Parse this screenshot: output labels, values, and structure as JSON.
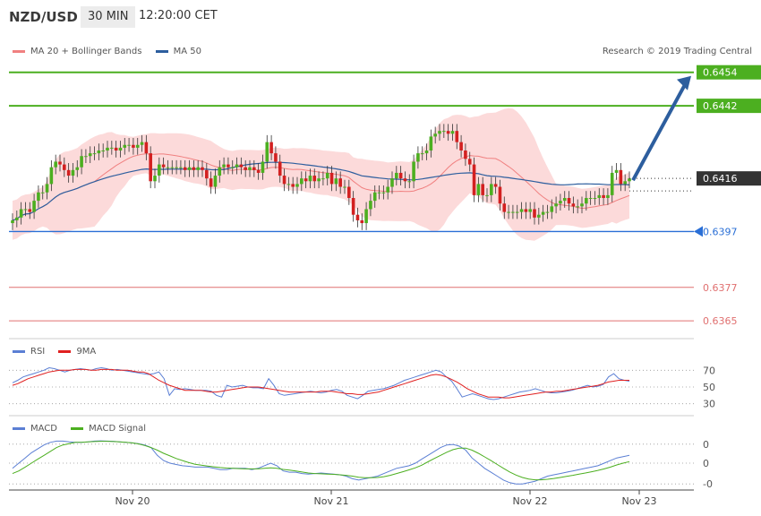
{
  "header": {
    "pair": "NZD/USD",
    "timeframe": "30 MIN",
    "time": "12:20:00 CET"
  },
  "legends": {
    "main": [
      {
        "label": "MA 20 + Bollinger Bands",
        "color": "#f08080"
      },
      {
        "label": "MA 50",
        "color": "#2d5e9e"
      }
    ],
    "rsi": [
      {
        "label": "RSI",
        "color": "#5b7fd4"
      },
      {
        "label": "9MA",
        "color": "#e02020"
      }
    ],
    "macd": [
      {
        "label": "MACD",
        "color": "#5b7fd4"
      },
      {
        "label": "MACD Signal",
        "color": "#4caf20"
      }
    ]
  },
  "copyright": "Research © 2019 Trading Central",
  "levels": [
    {
      "value": "0.6454",
      "color": "#4caf20",
      "kind": "resistance"
    },
    {
      "value": "0.6442",
      "color": "#4caf20",
      "kind": "resistance"
    },
    {
      "value": "0.6416",
      "color": "#333333",
      "kind": "current"
    },
    {
      "value": "0.6397",
      "color": "#2a6fd6",
      "kind": "pivot"
    },
    {
      "value": "0.6377",
      "color": "#e07070",
      "kind": "support"
    },
    {
      "value": "0.6365",
      "color": "#e07070",
      "kind": "support"
    }
  ],
  "rsi_ticks": [
    "70",
    "50",
    "30"
  ],
  "macd_ticks": [
    "0",
    "0",
    "-0"
  ],
  "x_labels": [
    "Nov 20",
    "Nov 21",
    "Nov 22",
    "Nov 23"
  ],
  "chart_data": [
    {
      "type": "candlestick",
      "title": "NZD/USD 30 MIN",
      "ylim": [
        0.6358,
        0.646
      ],
      "close_start": 0.64,
      "closes": [
        0.6401,
        0.6402,
        0.6405,
        0.6405,
        0.6404,
        0.6408,
        0.6411,
        0.6411,
        0.6414,
        0.642,
        0.6422,
        0.6421,
        0.6419,
        0.6417,
        0.6419,
        0.642,
        0.6424,
        0.6424,
        0.6425,
        0.6425,
        0.6426,
        0.6426,
        0.6427,
        0.6427,
        0.6426,
        0.6427,
        0.6428,
        0.6428,
        0.6427,
        0.6428,
        0.6429,
        0.6425,
        0.6415,
        0.6417,
        0.6421,
        0.642,
        0.642,
        0.642,
        0.642,
        0.642,
        0.6419,
        0.642,
        0.6419,
        0.642,
        0.6419,
        0.6416,
        0.6413,
        0.6417,
        0.642,
        0.6421,
        0.642,
        0.642,
        0.6421,
        0.642,
        0.6419,
        0.642,
        0.6419,
        0.6418,
        0.6422,
        0.6429,
        0.6425,
        0.6422,
        0.6417,
        0.6414,
        0.6414,
        0.6413,
        0.6414,
        0.6416,
        0.6415,
        0.6417,
        0.6415,
        0.6416,
        0.6416,
        0.6418,
        0.6414,
        0.6416,
        0.6413,
        0.6413,
        0.6409,
        0.6403,
        0.6401,
        0.64,
        0.6405,
        0.6408,
        0.6411,
        0.6411,
        0.6411,
        0.6413,
        0.6416,
        0.6418,
        0.6416,
        0.6415,
        0.6415,
        0.6422,
        0.6425,
        0.6425,
        0.6426,
        0.6431,
        0.6432,
        0.6433,
        0.6433,
        0.6432,
        0.6433,
        0.6429,
        0.6426,
        0.6423,
        0.6421,
        0.641,
        0.6414,
        0.641,
        0.641,
        0.6414,
        0.6413,
        0.6407,
        0.6404,
        0.6404,
        0.6404,
        0.6404,
        0.6405,
        0.6404,
        0.6405,
        0.6402,
        0.6403,
        0.6404,
        0.6404,
        0.6406,
        0.6407,
        0.6408,
        0.6409,
        0.6407,
        0.6406,
        0.6406,
        0.6407,
        0.6409,
        0.6409,
        0.6409,
        0.641,
        0.6409,
        0.641,
        0.6418,
        0.6419,
        0.6414,
        0.6415,
        0.6416
      ],
      "series": [
        {
          "name": "MA 20 + Bollinger Bands"
        },
        {
          "name": "MA 50"
        }
      ]
    },
    {
      "type": "line",
      "title": "RSI",
      "ylim": [
        20,
        80
      ],
      "series": [
        {
          "name": "RSI",
          "values": [
            55,
            58,
            62,
            64,
            66,
            68,
            70,
            73,
            72,
            70,
            68,
            70,
            71,
            72,
            71,
            70,
            72,
            73,
            72,
            70,
            71,
            70,
            69,
            68,
            67,
            66,
            65,
            66,
            68,
            60,
            40,
            48,
            47,
            48,
            47,
            46,
            46,
            46,
            45,
            40,
            38,
            52,
            50,
            51,
            52,
            50,
            49,
            49,
            48,
            60,
            52,
            42,
            40,
            41,
            42,
            43,
            44,
            45,
            44,
            43,
            44,
            46,
            47,
            45,
            40,
            38,
            36,
            40,
            45,
            46,
            47,
            48,
            50,
            52,
            55,
            58,
            60,
            62,
            64,
            66,
            68,
            70,
            68,
            62,
            57,
            48,
            38,
            40,
            42,
            40,
            38,
            36,
            35,
            36,
            38,
            40,
            42,
            44,
            45,
            46,
            48,
            46,
            44,
            43,
            43,
            44,
            45,
            46,
            48,
            50,
            52,
            50,
            51,
            53,
            62,
            66,
            60,
            58,
            57
          ]
        },
        {
          "name": "9MA",
          "values": [
            52,
            54,
            57,
            60,
            62,
            64,
            66,
            68,
            69,
            70,
            70,
            70,
            71,
            71,
            71,
            70,
            70,
            71,
            71,
            71,
            70,
            70,
            70,
            69,
            68,
            68,
            66,
            62,
            58,
            55,
            52,
            50,
            48,
            46,
            46,
            46,
            46,
            45,
            44,
            44,
            45,
            46,
            47,
            48,
            49,
            50,
            50,
            50,
            49,
            48,
            47,
            46,
            45,
            44,
            44,
            44,
            44,
            44,
            44,
            45,
            45,
            45,
            44,
            43,
            42,
            42,
            41,
            41,
            42,
            43,
            44,
            46,
            48,
            50,
            52,
            54,
            56,
            58,
            60,
            62,
            64,
            65,
            64,
            62,
            59,
            56,
            52,
            48,
            45,
            42,
            40,
            38,
            38,
            38,
            37,
            37,
            38,
            39,
            40,
            41,
            42,
            43,
            44,
            44,
            45,
            45,
            46,
            47,
            48,
            49,
            50,
            51,
            52,
            54,
            56,
            57,
            58,
            58,
            58
          ]
        }
      ]
    },
    {
      "type": "line",
      "title": "MACD",
      "ylim": [
        -1,
        1
      ],
      "series": [
        {
          "name": "MACD",
          "values": [
            -0.2,
            0.0,
            0.2,
            0.4,
            0.55,
            0.7,
            0.8,
            0.85,
            0.85,
            0.82,
            0.8,
            0.8,
            0.82,
            0.85,
            0.86,
            0.85,
            0.84,
            0.82,
            0.8,
            0.78,
            0.75,
            0.7,
            0.6,
            0.3,
            0.1,
            0.0,
            -0.05,
            -0.1,
            -0.12,
            -0.15,
            -0.15,
            -0.15,
            -0.2,
            -0.25,
            -0.25,
            -0.2,
            -0.2,
            -0.2,
            -0.25,
            -0.2,
            -0.1,
            0.0,
            -0.1,
            -0.3,
            -0.35,
            -0.35,
            -0.4,
            -0.42,
            -0.4,
            -0.38,
            -0.4,
            -0.42,
            -0.45,
            -0.5,
            -0.6,
            -0.65,
            -0.6,
            -0.55,
            -0.5,
            -0.4,
            -0.3,
            -0.2,
            -0.15,
            -0.1,
            0.0,
            0.15,
            0.3,
            0.45,
            0.6,
            0.7,
            0.72,
            0.65,
            0.5,
            0.2,
            0.0,
            -0.2,
            -0.35,
            -0.5,
            -0.65,
            -0.75,
            -0.8,
            -0.8,
            -0.75,
            -0.7,
            -0.6,
            -0.5,
            -0.45,
            -0.4,
            -0.35,
            -0.3,
            -0.25,
            -0.2,
            -0.15,
            -0.1,
            0.0,
            0.1,
            0.2,
            0.25,
            0.3
          ]
        },
        {
          "name": "MACD Signal",
          "values": [
            -0.4,
            -0.3,
            -0.15,
            0.0,
            0.15,
            0.3,
            0.45,
            0.6,
            0.7,
            0.75,
            0.8,
            0.8,
            0.82,
            0.83,
            0.84,
            0.84,
            0.83,
            0.82,
            0.8,
            0.78,
            0.74,
            0.68,
            0.6,
            0.5,
            0.38,
            0.28,
            0.18,
            0.1,
            0.02,
            -0.04,
            -0.08,
            -0.11,
            -0.14,
            -0.17,
            -0.19,
            -0.2,
            -0.21,
            -0.22,
            -0.22,
            -0.22,
            -0.2,
            -0.18,
            -0.2,
            -0.24,
            -0.27,
            -0.3,
            -0.34,
            -0.38,
            -0.4,
            -0.41,
            -0.42,
            -0.43,
            -0.45,
            -0.47,
            -0.5,
            -0.54,
            -0.56,
            -0.56,
            -0.55,
            -0.52,
            -0.47,
            -0.4,
            -0.33,
            -0.26,
            -0.18,
            -0.08,
            0.05,
            0.18,
            0.3,
            0.42,
            0.52,
            0.58,
            0.58,
            0.5,
            0.38,
            0.24,
            0.1,
            -0.05,
            -0.2,
            -0.34,
            -0.46,
            -0.55,
            -0.61,
            -0.64,
            -0.64,
            -0.62,
            -0.59,
            -0.55,
            -0.51,
            -0.47,
            -0.42,
            -0.38,
            -0.33,
            -0.28,
            -0.22,
            -0.15,
            -0.07,
            0.0,
            0.06
          ]
        }
      ]
    }
  ]
}
